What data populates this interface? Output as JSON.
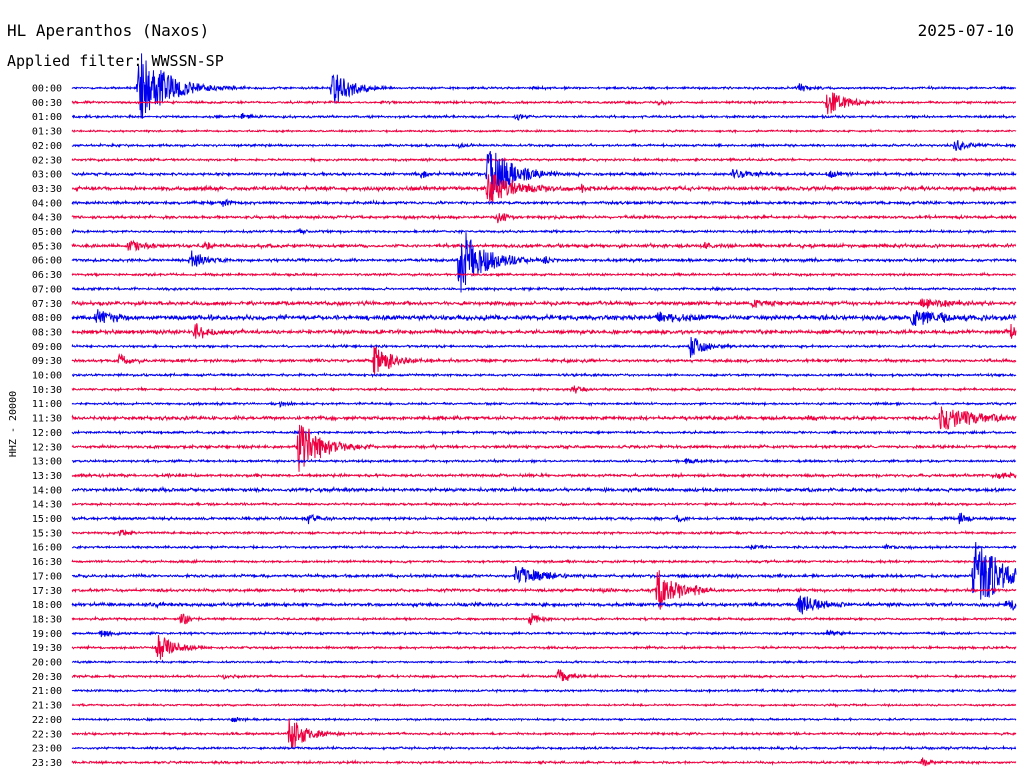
{
  "header": {
    "station": "HL Aperanthos (Naxos)",
    "date": "2025-07-10",
    "filter": "Applied filter: WWSSN-SP"
  },
  "chart_data": {
    "type": "line",
    "ylabel": "HHZ - 20000",
    "x_axis": "none",
    "grid": false,
    "legend": "none",
    "colors": [
      "#0000ee",
      "#ee0040"
    ],
    "rows": [
      {
        "label": "00:00",
        "color": "#0000ee",
        "noise": 1.2,
        "events": [
          {
            "t": 0.07,
            "amp": 40,
            "dur": 0.03
          },
          {
            "t": 0.275,
            "amp": 20,
            "dur": 0.02
          },
          {
            "t": 0.77,
            "amp": 5,
            "dur": 0.01
          }
        ]
      },
      {
        "label": "00:30",
        "color": "#ee0040",
        "noise": 1.2,
        "events": [
          {
            "t": 0.8,
            "amp": 14,
            "dur": 0.02
          },
          {
            "t": 0.62,
            "amp": 3,
            "dur": 0.01
          }
        ]
      },
      {
        "label": "01:00",
        "color": "#0000ee",
        "noise": 1.2,
        "events": [
          {
            "t": 0.18,
            "amp": 4,
            "dur": 0.01
          },
          {
            "t": 0.47,
            "amp": 4,
            "dur": 0.01
          }
        ]
      },
      {
        "label": "01:30",
        "color": "#ee0040",
        "noise": 1.0,
        "events": []
      },
      {
        "label": "02:00",
        "color": "#0000ee",
        "noise": 1.2,
        "events": [
          {
            "t": 0.935,
            "amp": 7,
            "dur": 0.015
          },
          {
            "t": 0.41,
            "amp": 3,
            "dur": 0.01
          }
        ]
      },
      {
        "label": "02:30",
        "color": "#ee0040",
        "noise": 1.2,
        "events": []
      },
      {
        "label": "03:00",
        "color": "#0000ee",
        "noise": 1.5,
        "events": [
          {
            "t": 0.44,
            "amp": 30,
            "dur": 0.025
          },
          {
            "t": 0.37,
            "amp": 5,
            "dur": 0.01
          },
          {
            "t": 0.7,
            "amp": 6,
            "dur": 0.02
          },
          {
            "t": 0.8,
            "amp": 4,
            "dur": 0.015
          }
        ]
      },
      {
        "label": "03:30",
        "color": "#ee0040",
        "noise": 2.0,
        "events": [
          {
            "t": 0.44,
            "amp": 18,
            "dur": 0.03
          },
          {
            "t": 0.54,
            "amp": 4,
            "dur": 0.01
          }
        ]
      },
      {
        "label": "04:00",
        "color": "#0000ee",
        "noise": 1.5,
        "events": [
          {
            "t": 0.16,
            "amp": 5,
            "dur": 0.01
          }
        ]
      },
      {
        "label": "04:30",
        "color": "#ee0040",
        "noise": 1.5,
        "events": [
          {
            "t": 0.45,
            "amp": 8,
            "dur": 0.01
          }
        ]
      },
      {
        "label": "05:00",
        "color": "#0000ee",
        "noise": 1.2,
        "events": [
          {
            "t": 0.24,
            "amp": 3,
            "dur": 0.01
          }
        ]
      },
      {
        "label": "05:30",
        "color": "#ee0040",
        "noise": 1.8,
        "events": [
          {
            "t": 0.06,
            "amp": 6,
            "dur": 0.02
          },
          {
            "t": 0.14,
            "amp": 5,
            "dur": 0.01
          },
          {
            "t": 0.67,
            "amp": 3,
            "dur": 0.01
          }
        ]
      },
      {
        "label": "06:00",
        "color": "#0000ee",
        "noise": 1.5,
        "events": [
          {
            "t": 0.41,
            "amp": 38,
            "dur": 0.025
          },
          {
            "t": 0.125,
            "amp": 12,
            "dur": 0.015
          },
          {
            "t": 0.5,
            "amp": 5,
            "dur": 0.01
          }
        ]
      },
      {
        "label": "06:30",
        "color": "#ee0040",
        "noise": 1.2,
        "events": []
      },
      {
        "label": "07:00",
        "color": "#0000ee",
        "noise": 1.2,
        "events": [
          {
            "t": 0.68,
            "amp": 3,
            "dur": 0.01
          }
        ]
      },
      {
        "label": "07:30",
        "color": "#ee0040",
        "noise": 2.0,
        "events": [
          {
            "t": 0.72,
            "amp": 5,
            "dur": 0.02
          },
          {
            "t": 0.9,
            "amp": 6,
            "dur": 0.03
          }
        ]
      },
      {
        "label": "08:00",
        "color": "#0000ee",
        "noise": 2.5,
        "events": [
          {
            "t": 0.025,
            "amp": 8,
            "dur": 0.02
          },
          {
            "t": 0.62,
            "amp": 6,
            "dur": 0.03
          },
          {
            "t": 0.89,
            "amp": 10,
            "dur": 0.03
          }
        ]
      },
      {
        "label": "08:30",
        "color": "#ee0040",
        "noise": 2.0,
        "events": [
          {
            "t": 0.13,
            "amp": 10,
            "dur": 0.015
          },
          {
            "t": 0.995,
            "amp": 10,
            "dur": 0.005
          }
        ]
      },
      {
        "label": "09:00",
        "color": "#0000ee",
        "noise": 1.2,
        "events": [
          {
            "t": 0.655,
            "amp": 12,
            "dur": 0.015
          }
        ]
      },
      {
        "label": "09:30",
        "color": "#ee0040",
        "noise": 1.5,
        "events": [
          {
            "t": 0.05,
            "amp": 8,
            "dur": 0.01
          },
          {
            "t": 0.32,
            "amp": 16,
            "dur": 0.02
          }
        ]
      },
      {
        "label": "10:00",
        "color": "#0000ee",
        "noise": 1.2,
        "events": []
      },
      {
        "label": "10:30",
        "color": "#ee0040",
        "noise": 1.2,
        "events": [
          {
            "t": 0.53,
            "amp": 6,
            "dur": 0.01
          }
        ]
      },
      {
        "label": "11:00",
        "color": "#0000ee",
        "noise": 1.2,
        "events": [
          {
            "t": 0.22,
            "amp": 3,
            "dur": 0.01
          }
        ]
      },
      {
        "label": "11:30",
        "color": "#ee0040",
        "noise": 1.8,
        "events": [
          {
            "t": 0.92,
            "amp": 14,
            "dur": 0.035
          },
          {
            "t": 0.78,
            "amp": 3,
            "dur": 0.01
          }
        ]
      },
      {
        "label": "12:00",
        "color": "#0000ee",
        "noise": 1.2,
        "events": []
      },
      {
        "label": "12:30",
        "color": "#ee0040",
        "noise": 1.5,
        "events": [
          {
            "t": 0.24,
            "amp": 28,
            "dur": 0.025
          }
        ]
      },
      {
        "label": "13:00",
        "color": "#0000ee",
        "noise": 1.2,
        "events": [
          {
            "t": 0.65,
            "amp": 4,
            "dur": 0.01
          }
        ]
      },
      {
        "label": "13:30",
        "color": "#ee0040",
        "noise": 1.5,
        "events": [
          {
            "t": 0.98,
            "amp": 4,
            "dur": 0.02
          }
        ]
      },
      {
        "label": "14:00",
        "color": "#0000ee",
        "noise": 1.8,
        "events": []
      },
      {
        "label": "14:30",
        "color": "#ee0040",
        "noise": 1.2,
        "events": []
      },
      {
        "label": "15:00",
        "color": "#0000ee",
        "noise": 1.5,
        "events": [
          {
            "t": 0.25,
            "amp": 7,
            "dur": 0.01
          },
          {
            "t": 0.64,
            "amp": 4,
            "dur": 0.01
          },
          {
            "t": 0.94,
            "amp": 6,
            "dur": 0.01
          }
        ]
      },
      {
        "label": "15:30",
        "color": "#ee0040",
        "noise": 1.2,
        "events": [
          {
            "t": 0.05,
            "amp": 4,
            "dur": 0.01
          }
        ]
      },
      {
        "label": "16:00",
        "color": "#0000ee",
        "noise": 1.2,
        "events": [
          {
            "t": 0.72,
            "amp": 3,
            "dur": 0.01
          },
          {
            "t": 0.86,
            "amp": 3,
            "dur": 0.015
          }
        ]
      },
      {
        "label": "16:30",
        "color": "#ee0040",
        "noise": 1.2,
        "events": []
      },
      {
        "label": "17:00",
        "color": "#0000ee",
        "noise": 1.5,
        "events": [
          {
            "t": 0.47,
            "amp": 10,
            "dur": 0.03
          },
          {
            "t": 0.955,
            "amp": 40,
            "dur": 0.03
          }
        ]
      },
      {
        "label": "17:30",
        "color": "#ee0040",
        "noise": 1.5,
        "events": [
          {
            "t": 0.62,
            "amp": 22,
            "dur": 0.02
          },
          {
            "t": 0.56,
            "amp": 3,
            "dur": 0.01
          },
          {
            "t": 0.66,
            "amp": 4,
            "dur": 0.01
          }
        ]
      },
      {
        "label": "18:00",
        "color": "#0000ee",
        "noise": 1.8,
        "events": [
          {
            "t": 0.77,
            "amp": 14,
            "dur": 0.02
          },
          {
            "t": 0.99,
            "amp": 6,
            "dur": 0.02
          },
          {
            "t": 0.09,
            "amp": 3,
            "dur": 0.01
          }
        ]
      },
      {
        "label": "18:30",
        "color": "#ee0040",
        "noise": 1.2,
        "events": [
          {
            "t": 0.115,
            "amp": 8,
            "dur": 0.01
          },
          {
            "t": 0.485,
            "amp": 8,
            "dur": 0.01
          }
        ]
      },
      {
        "label": "19:00",
        "color": "#0000ee",
        "noise": 1.2,
        "events": [
          {
            "t": 0.03,
            "amp": 4,
            "dur": 0.015
          },
          {
            "t": 0.8,
            "amp": 4,
            "dur": 0.015
          }
        ]
      },
      {
        "label": "19:30",
        "color": "#ee0040",
        "noise": 1.2,
        "events": [
          {
            "t": 0.09,
            "amp": 14,
            "dur": 0.02
          }
        ]
      },
      {
        "label": "20:00",
        "color": "#0000ee",
        "noise": 1.0,
        "events": []
      },
      {
        "label": "20:30",
        "color": "#ee0040",
        "noise": 1.2,
        "events": [
          {
            "t": 0.515,
            "amp": 8,
            "dur": 0.015
          },
          {
            "t": 0.16,
            "amp": 3,
            "dur": 0.01
          }
        ]
      },
      {
        "label": "21:00",
        "color": "#0000ee",
        "noise": 1.2,
        "events": []
      },
      {
        "label": "21:30",
        "color": "#ee0040",
        "noise": 1.0,
        "events": []
      },
      {
        "label": "22:00",
        "color": "#0000ee",
        "noise": 1.0,
        "events": [
          {
            "t": 0.17,
            "amp": 3,
            "dur": 0.01
          }
        ]
      },
      {
        "label": "22:30",
        "color": "#ee0040",
        "noise": 1.2,
        "events": [
          {
            "t": 0.23,
            "amp": 18,
            "dur": 0.02
          }
        ]
      },
      {
        "label": "23:00",
        "color": "#0000ee",
        "noise": 1.2,
        "events": []
      },
      {
        "label": "23:30",
        "color": "#ee0040",
        "noise": 1.2,
        "events": [
          {
            "t": 0.9,
            "amp": 5,
            "dur": 0.01
          }
        ]
      }
    ]
  }
}
